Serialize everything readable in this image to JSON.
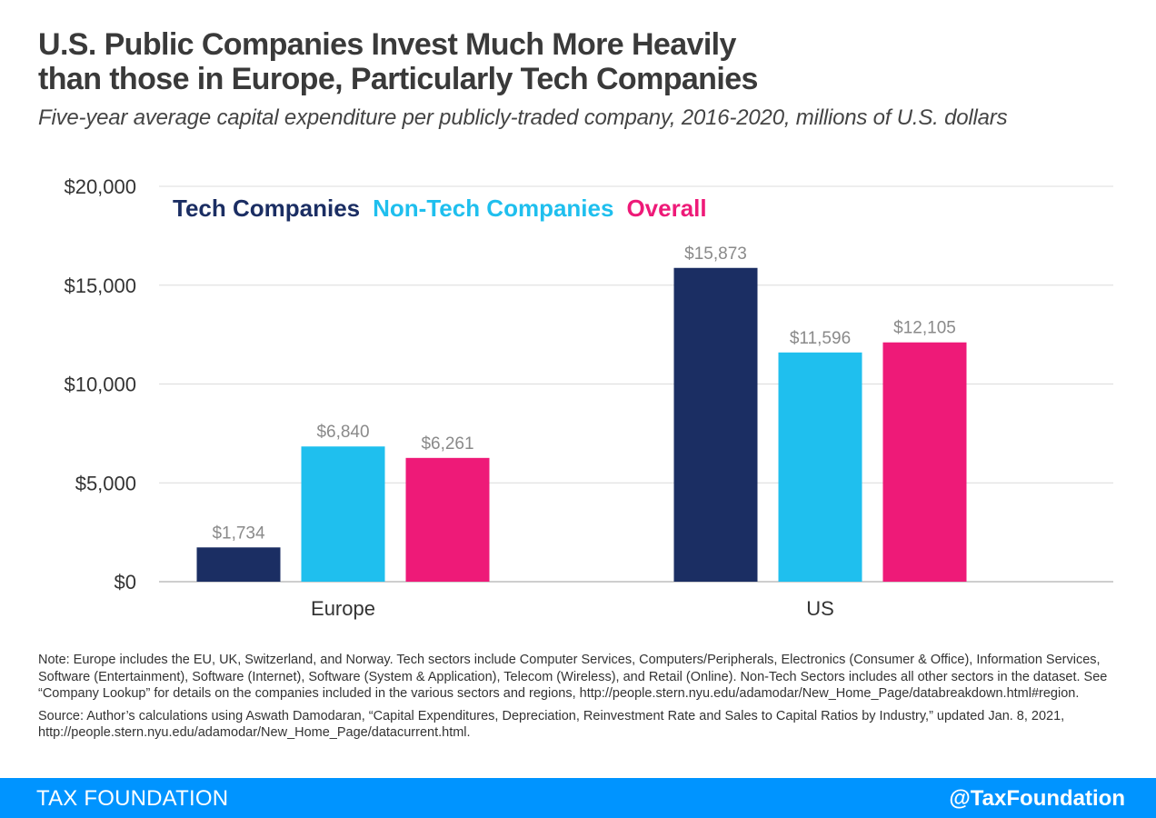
{
  "title_lines": [
    "U.S. Public Companies Invest Much More Heavily",
    "than those in Europe, Particularly Tech Companies"
  ],
  "subtitle": "Five-year average capital expenditure per publicly-traded company, 2016-2020, millions of U.S. dollars",
  "chart_data": {
    "type": "bar",
    "categories": [
      "Europe",
      "US"
    ],
    "series": [
      {
        "name": "Tech Companies",
        "color": "#1b2e63",
        "values": [
          1734,
          15873
        ],
        "labels": [
          "$1,734",
          "$15,873"
        ]
      },
      {
        "name": "Non-Tech Companies",
        "color": "#1fbfee",
        "values": [
          6840,
          11596
        ],
        "labels": [
          "$6,840",
          "$11,596"
        ]
      },
      {
        "name": "Overall",
        "color": "#ee1a78",
        "values": [
          6261,
          12105
        ],
        "labels": [
          "$6,261",
          "$12,105"
        ]
      }
    ],
    "ylim": [
      0,
      20000
    ],
    "yticks": [
      0,
      5000,
      10000,
      15000,
      20000
    ],
    "ytick_labels": [
      "$0",
      "$5,000",
      "$10,000",
      "$15,000",
      "$20,000"
    ],
    "grid": true,
    "legend_position": "top-left"
  },
  "notes": {
    "note": "Note: Europe includes the EU, UK, Switzerland, and Norway. Tech sectors include Computer Services, Computers/Peripherals, Electronics (Consumer & Office), Information Services, Software (Entertainment), Software (Internet), Software (System & Application), Telecom (Wireless), and Retail (Online). Non-Tech Sectors includes all other sectors in the dataset. See “Company Lookup” for details on the companies included in the various sectors and regions, http://people.stern.nyu.edu/adamodar/New_Home_Page/databreakdown.html#region.",
    "source": "Source: Author’s calculations using Aswath Damodaran, “Capital Expenditures, Depreciation, Reinvestment Rate and Sales to Capital Ratios by Industry,” updated Jan. 8, 2021, http://people.stern.nyu.edu/adamodar/New_Home_Page/datacurrent.html."
  },
  "footer": {
    "brand": "TAX FOUNDATION",
    "handle": "@TaxFoundation",
    "color": "#0094ff"
  }
}
